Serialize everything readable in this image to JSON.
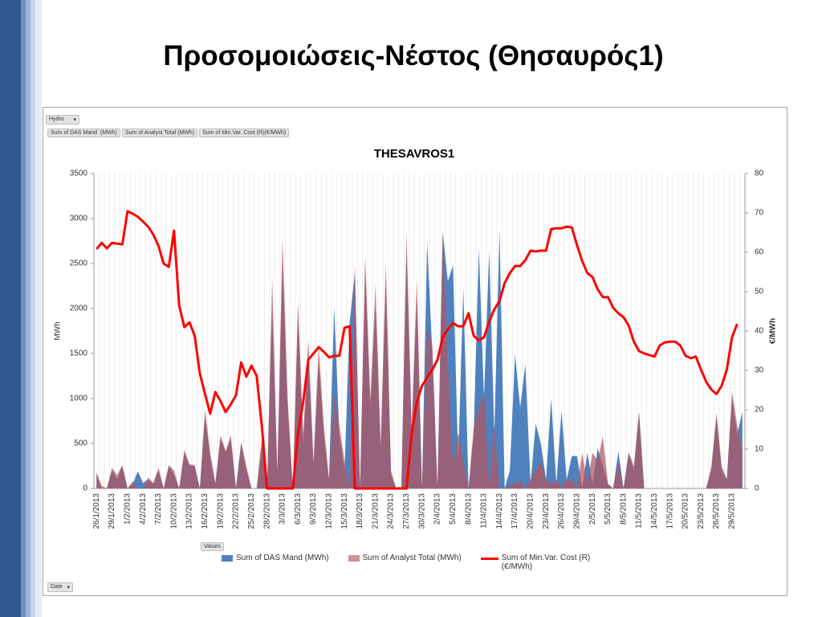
{
  "slide_title": "Προσομοιώσεις-Νέστος (Θησαυρός1)",
  "pivot": {
    "report_filter": "Hydro",
    "data_buttons": [
      "Sum of DAS Mand  (MWh)",
      "Sum of Analyst Total (MWh)",
      "Sum of Min.Var. Cost (R)(€/MWh)"
    ],
    "values_button": "Values",
    "axis_button": "Date"
  },
  "chart_data": {
    "type": "combo",
    "title": "THESAVROS1",
    "y_label": "MWh",
    "y2_label": "€/MWh",
    "categories": [
      "26/1/2013",
      null,
      null,
      "29/1/2013",
      null,
      null,
      "1/2/2013",
      null,
      null,
      "4/2/2013",
      null,
      null,
      "7/2/2013",
      null,
      null,
      "10/2/2013",
      null,
      null,
      "13/2/2013",
      null,
      null,
      "16/2/2013",
      null,
      null,
      "19/2/2013",
      null,
      null,
      "22/2/2013",
      null,
      null,
      "25/2/2013",
      null,
      null,
      "28/2/2013",
      null,
      null,
      "3/3/2013",
      null,
      null,
      "6/3/2013",
      null,
      null,
      "9/3/2013",
      null,
      null,
      "12/3/2013",
      null,
      null,
      "15/3/2013",
      null,
      null,
      "18/3/2013",
      null,
      null,
      "21/3/2013",
      null,
      null,
      "24/3/2013",
      null,
      null,
      "27/3/2013",
      null,
      null,
      "30/3/2013",
      null,
      null,
      "2/4/2013",
      null,
      null,
      "5/4/2013",
      null,
      null,
      "8/4/2013",
      null,
      null,
      "11/4/2013",
      null,
      null,
      "14/4/2013",
      null,
      null,
      "17/4/2013",
      null,
      null,
      "20/4/2013",
      null,
      null,
      "23/4/2013",
      null,
      null,
      "26/4/2013",
      null,
      null,
      "29/4/2013",
      null,
      null,
      "2/5/2013",
      null,
      null,
      "5/5/2013",
      null,
      null,
      "8/5/2013",
      null,
      null,
      "11/5/2013",
      null,
      null,
      "14/5/2013",
      null,
      null,
      "17/5/2013",
      null,
      null,
      "20/5/2013",
      null,
      null,
      "23/5/2013",
      null,
      null,
      "26/5/2013",
      null,
      null,
      "29/5/2013",
      null,
      null
    ],
    "series": [
      {
        "name": "Sum of DAS Mand  (MWh)",
        "type": "area",
        "color": "#4f81bd",
        "values": [
          150,
          0,
          0,
          200,
          100,
          250,
          0,
          50,
          190,
          60,
          100,
          50,
          200,
          0,
          250,
          150,
          0,
          400,
          250,
          250,
          0,
          800,
          350,
          50,
          550,
          400,
          550,
          0,
          500,
          200,
          0,
          0,
          500,
          0,
          2000,
          150,
          2500,
          900,
          0,
          1900,
          500,
          1500,
          250,
          1400,
          600,
          100,
          2020,
          600,
          200,
          1850,
          2400,
          0,
          2400,
          900,
          2000,
          400,
          2300,
          150,
          0,
          0,
          2600,
          600,
          2100,
          0,
          2740,
          1500,
          0,
          2850,
          2300,
          2480,
          300,
          2230,
          0,
          600,
          2680,
          1000,
          2640,
          600,
          2880,
          0,
          200,
          1490,
          900,
          1380,
          50,
          720,
          500,
          100,
          1000,
          50,
          860,
          100,
          360,
          360,
          0,
          400,
          50,
          450,
          250,
          50,
          0,
          410,
          0,
          400,
          200,
          850,
          0,
          0,
          0,
          0,
          0,
          0,
          0,
          0,
          0,
          0,
          0,
          0,
          0,
          200,
          800,
          200,
          100,
          1000,
          600,
          850
        ]
      },
      {
        "name": "Sum of Analyst Total (MWh)",
        "type": "area",
        "color": "#b3545f",
        "values": [
          180,
          30,
          0,
          230,
          150,
          260,
          0,
          80,
          0,
          0,
          120,
          60,
          230,
          0,
          260,
          200,
          0,
          430,
          270,
          260,
          0,
          880,
          400,
          60,
          590,
          420,
          590,
          0,
          520,
          250,
          0,
          0,
          550,
          0,
          2340,
          200,
          2780,
          1000,
          0,
          2090,
          600,
          1660,
          300,
          1580,
          700,
          100,
          1040,
          700,
          300,
          0,
          2500,
          0,
          2600,
          1000,
          2270,
          500,
          2510,
          200,
          0,
          0,
          2850,
          700,
          2330,
          0,
          1800,
          1600,
          0,
          2850,
          1400,
          250,
          620,
          300,
          0,
          680,
          870,
          1080,
          0,
          700,
          0,
          0,
          30,
          60,
          80,
          0,
          100,
          200,
          300,
          100,
          50,
          100,
          0,
          100,
          100,
          0,
          400,
          50,
          400,
          300,
          580,
          50,
          0,
          300,
          0,
          400,
          250,
          850,
          0,
          0,
          0,
          0,
          0,
          0,
          0,
          0,
          0,
          0,
          0,
          0,
          0,
          250,
          840,
          250,
          100,
          1080,
          700,
          450
        ]
      },
      {
        "name": "Sum of Min.Var. Cost (R) (€/MWh)",
        "type": "line",
        "axis": "y2",
        "color": "#ff0000",
        "values": [
          60.8,
          62.4,
          61,
          62.4,
          62.2,
          62,
          70.4,
          69.8,
          69,
          67.8,
          66.5,
          64.5,
          61.6,
          57.1,
          56.3,
          65.5,
          46.5,
          41,
          42.2,
          38.8,
          29.2,
          24,
          19,
          24.5,
          22.2,
          19.4,
          21.4,
          23.7,
          32,
          28.4,
          31.2,
          28.6,
          15.9,
          0,
          0,
          0,
          0,
          0,
          0,
          13.9,
          22,
          32.7,
          34.3,
          35.9,
          34.7,
          33.3,
          33.7,
          33.7,
          40.8,
          41.2,
          0,
          0,
          0,
          0,
          0,
          0,
          0,
          0,
          0,
          0,
          0,
          13.9,
          22,
          26.1,
          28.2,
          30.2,
          32.7,
          38.4,
          40.4,
          42,
          41.2,
          41.2,
          44.5,
          38.8,
          37.6,
          38.4,
          42.4,
          45.5,
          47.6,
          52.2,
          54.7,
          56.5,
          56.5,
          58,
          60.4,
          60.2,
          60.4,
          60.4,
          65.9,
          66.1,
          66.1,
          66.5,
          66.3,
          61.8,
          57.8,
          54.7,
          53.7,
          50.6,
          48.6,
          48.6,
          45.9,
          44.5,
          43.5,
          41.4,
          37.3,
          34.9,
          34.3,
          33.9,
          33.5,
          36.3,
          37.1,
          37.3,
          37.3,
          36.3,
          33.7,
          33.1,
          33.5,
          30.2,
          27.1,
          25.1,
          24,
          26.1,
          30.2,
          38.4,
          41.8,
          null
        ]
      }
    ],
    "ylim": [
      0,
      3500
    ],
    "yticks": [
      0,
      500,
      1000,
      1500,
      2000,
      2500,
      3000,
      3500
    ],
    "y2lim": [
      0,
      80
    ],
    "y2ticks": [
      0,
      10,
      20,
      30,
      40,
      50,
      60,
      70,
      80
    ],
    "grid": true,
    "legend": "bottom"
  }
}
